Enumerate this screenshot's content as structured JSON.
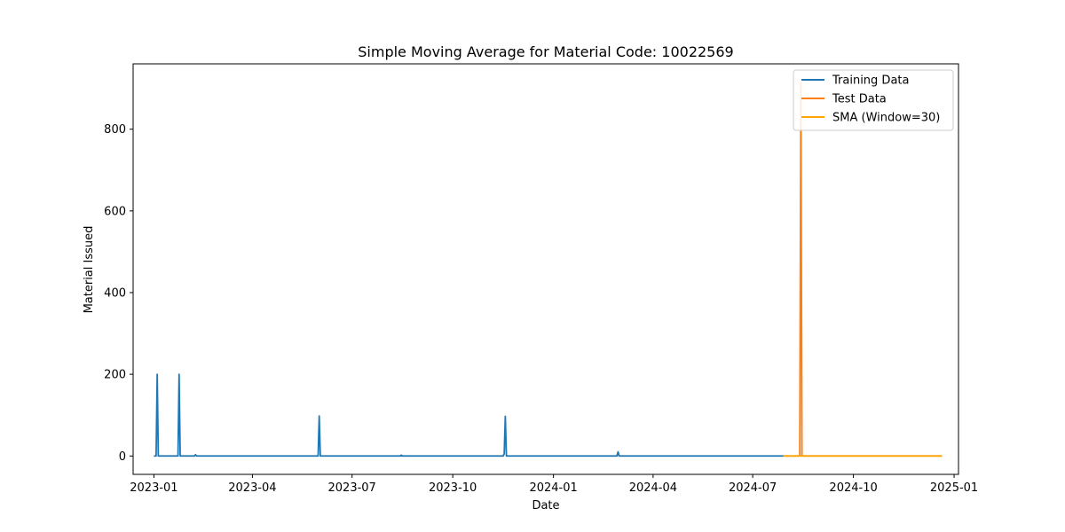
{
  "chart_data": {
    "type": "line",
    "title": "Simple Moving Average for Material Code: 10022569",
    "xlabel": "Date",
    "ylabel": "Material Issued",
    "xlim": [
      "2022-12-13",
      "2025-01-05"
    ],
    "ylim": [
      -45,
      960
    ],
    "x_ticks": [
      {
        "date": "2023-01-01",
        "label": "2023-01"
      },
      {
        "date": "2023-04-01",
        "label": "2023-04"
      },
      {
        "date": "2023-07-01",
        "label": "2023-07"
      },
      {
        "date": "2023-10-01",
        "label": "2023-10"
      },
      {
        "date": "2024-01-01",
        "label": "2024-01"
      },
      {
        "date": "2024-04-01",
        "label": "2024-04"
      },
      {
        "date": "2024-07-01",
        "label": "2024-07"
      },
      {
        "date": "2024-10-01",
        "label": "2024-10"
      },
      {
        "date": "2025-01-01",
        "label": "2025-01"
      }
    ],
    "y_ticks": [
      0,
      200,
      400,
      600,
      800
    ],
    "grid": false,
    "legend": {
      "position": "top-right"
    },
    "series": [
      {
        "name": "Training Data",
        "color": "#1f77b4",
        "points": [
          [
            "2023-01-01",
            0
          ],
          [
            "2023-01-03",
            0
          ],
          [
            "2023-01-04",
            200
          ],
          [
            "2023-01-05",
            0
          ],
          [
            "2023-01-23",
            0
          ],
          [
            "2023-01-24",
            200
          ],
          [
            "2023-01-25",
            0
          ],
          [
            "2023-02-07",
            0
          ],
          [
            "2023-02-08",
            3
          ],
          [
            "2023-02-09",
            0
          ],
          [
            "2023-05-31",
            0
          ],
          [
            "2023-06-01",
            98
          ],
          [
            "2023-06-02",
            0
          ],
          [
            "2023-08-14",
            0
          ],
          [
            "2023-08-15",
            2
          ],
          [
            "2023-08-16",
            0
          ],
          [
            "2023-11-16",
            0
          ],
          [
            "2023-11-17",
            5
          ],
          [
            "2023-11-18",
            97
          ],
          [
            "2023-11-19",
            0
          ],
          [
            "2024-02-28",
            0
          ],
          [
            "2024-02-29",
            10
          ],
          [
            "2024-03-01",
            0
          ],
          [
            "2024-07-29",
            0
          ]
        ]
      },
      {
        "name": "Test Data",
        "color": "#ff7f0e",
        "points": [
          [
            "2024-07-29",
            0
          ],
          [
            "2024-08-13",
            0
          ],
          [
            "2024-08-14",
            912
          ],
          [
            "2024-08-15",
            0
          ],
          [
            "2024-12-21",
            0
          ]
        ]
      },
      {
        "name": "SMA (Window=30)",
        "color": "#ffa500",
        "points": [
          [
            "2024-07-29",
            0
          ],
          [
            "2024-12-21",
            0
          ]
        ]
      }
    ]
  }
}
